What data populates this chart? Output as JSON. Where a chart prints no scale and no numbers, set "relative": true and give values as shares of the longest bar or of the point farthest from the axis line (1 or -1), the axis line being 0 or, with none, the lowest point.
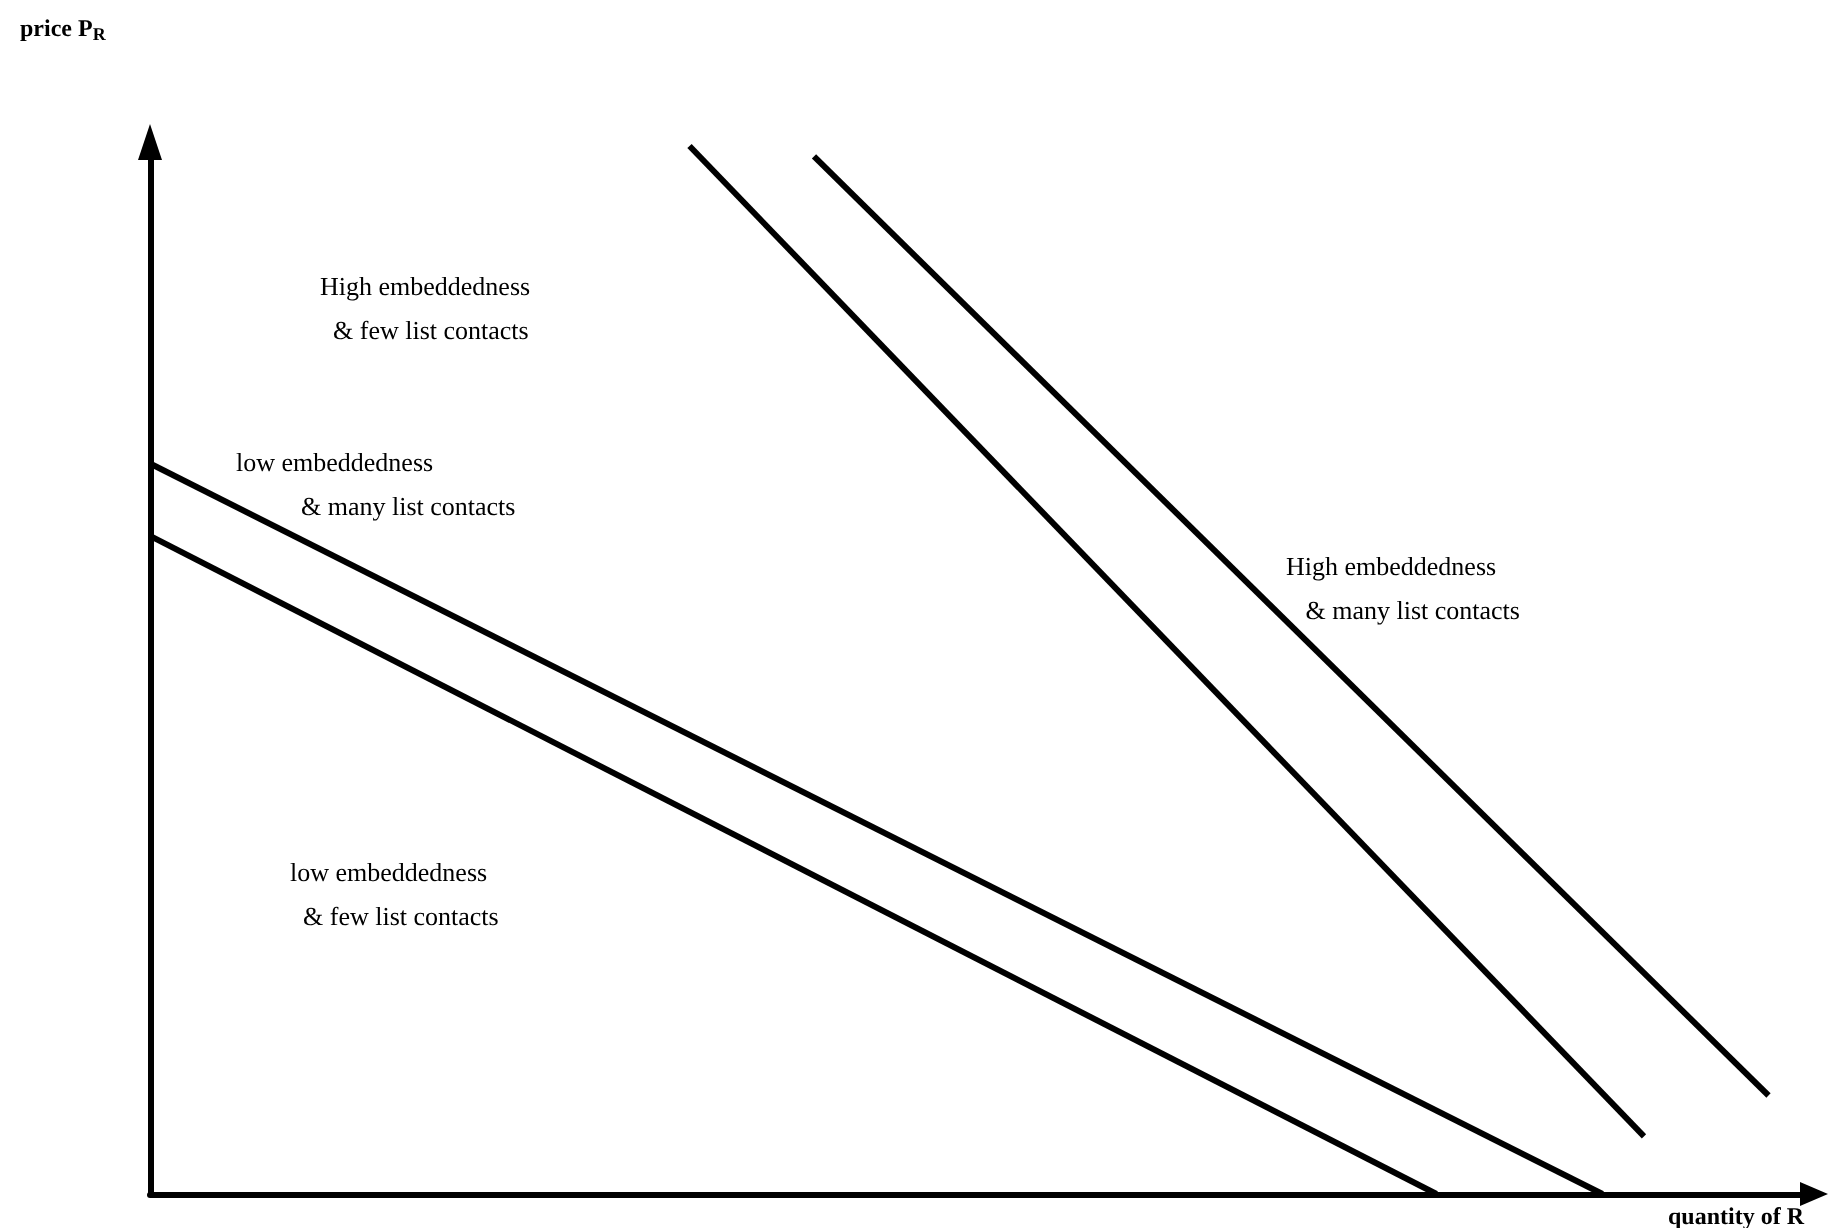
{
  "chart_data": {
    "type": "line",
    "relative": true,
    "xlabel": "quantity of R",
    "ylabel": "price P$_{R}$",
    "marker": "none",
    "line_style": "solid",
    "categories": [
      null,
      null,
      null,
      null,
      null,
      null,
      null,
      null,
      null,
      null,
      null,
      null,
      null,
      null,
      null,
      null,
      null,
      null,
      null,
      null,
      null,
      null,
      null,
      null,
      null,
      null,
      null,
      null,
      null,
      null,
      null,
      null,
      null,
      null,
      null,
      null,
      null,
      null,
      null,
      null,
      null
    ],
    "series": [
      {
        "color": "#000000",
        "values": [
          0.628,
          null,
          null,
          null,
          null,
          null,
          null,
          null,
          null,
          null,
          null,
          null,
          null,
          null,
          null,
          null,
          null,
          null,
          null,
          null,
          null,
          null,
          null,
          null,
          null,
          null,
          null,
          null,
          null,
          null,
          null,
          0,
          null,
          null,
          null,
          null,
          null,
          null,
          null,
          null,
          null
        ]
      },
      {
        "color": "#000000",
        "values": [
          0.697,
          null,
          null,
          null,
          null,
          null,
          null,
          null,
          null,
          null,
          null,
          null,
          null,
          null,
          null,
          null,
          null,
          null,
          null,
          null,
          null,
          null,
          null,
          null,
          null,
          null,
          null,
          null,
          null,
          null,
          null,
          null,
          null,
          null,
          null,
          0,
          null,
          null,
          null,
          null,
          null
        ]
      },
      {
        "color": "#000000",
        "values": [
          null,
          null,
          null,
          null,
          null,
          null,
          null,
          null,
          null,
          null,
          null,
          null,
          null,
          1,
          null,
          null,
          null,
          null,
          null,
          null,
          null,
          null,
          null,
          null,
          null,
          null,
          null,
          null,
          null,
          null,
          null,
          null,
          null,
          null,
          null,
          null,
          0.055,
          null,
          null,
          null,
          null
        ]
      },
      {
        "color": "#000000",
        "values": [
          null,
          null,
          null,
          null,
          null,
          null,
          null,
          null,
          null,
          null,
          null,
          null,
          null,
          null,
          null,
          null,
          0.99,
          null,
          null,
          null,
          null,
          null,
          null,
          null,
          null,
          null,
          null,
          null,
          null,
          null,
          null,
          null,
          null,
          null,
          null,
          null,
          null,
          null,
          null,
          0.094,
          null
        ]
      }
    ],
    "annotations": [
      "High embeddedness\n  & few list contacts",
      "High embeddedness\n   & many list contacts",
      "low embeddedness\n          & many list contacts",
      "low embeddedness\n  & few list contacts"
    ]
  }
}
